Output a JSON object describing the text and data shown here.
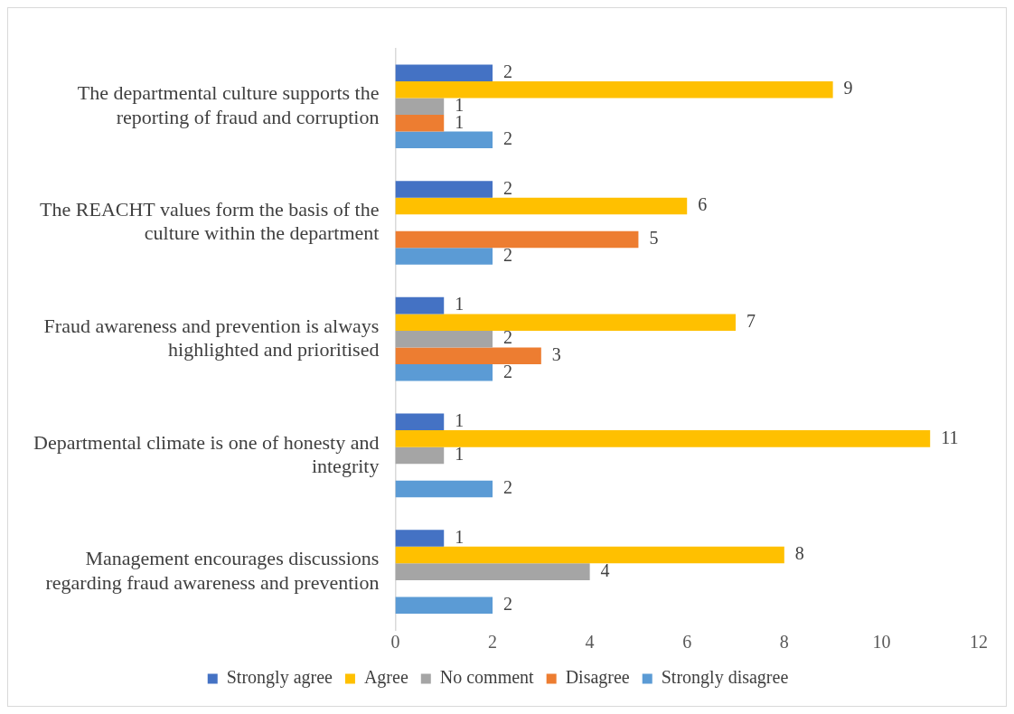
{
  "chart_data": {
    "type": "bar",
    "orientation": "horizontal",
    "categories": [
      "The departmental culture supports the reporting of fraud and corruption",
      "The REACHT values form the basis of the culture within the department",
      "Fraud awareness and prevention is always highlighted and prioritised",
      "Departmental climate is one of honesty and integrity",
      "Management encourages discussions regarding fraud awareness and prevention"
    ],
    "series": [
      {
        "name": "Strongly agree",
        "color": "#4472c4",
        "values": [
          2,
          2,
          1,
          1,
          1
        ]
      },
      {
        "name": "Agree",
        "color": "#ffc000",
        "values": [
          9,
          6,
          7,
          11,
          8
        ]
      },
      {
        "name": "No comment",
        "color": "#a5a5a5",
        "values": [
          1,
          null,
          2,
          1,
          4
        ]
      },
      {
        "name": "Disagree",
        "color": "#ed7d31",
        "values": [
          1,
          5,
          3,
          null,
          null
        ]
      },
      {
        "name": "Strongly disagree",
        "color": "#5b9bd5",
        "values": [
          2,
          2,
          2,
          2,
          2
        ]
      }
    ],
    "xlim": [
      0,
      12
    ],
    "xticks": [
      0,
      2,
      4,
      6,
      8,
      10,
      12
    ],
    "data_labels": true,
    "legend": "bottom"
  }
}
